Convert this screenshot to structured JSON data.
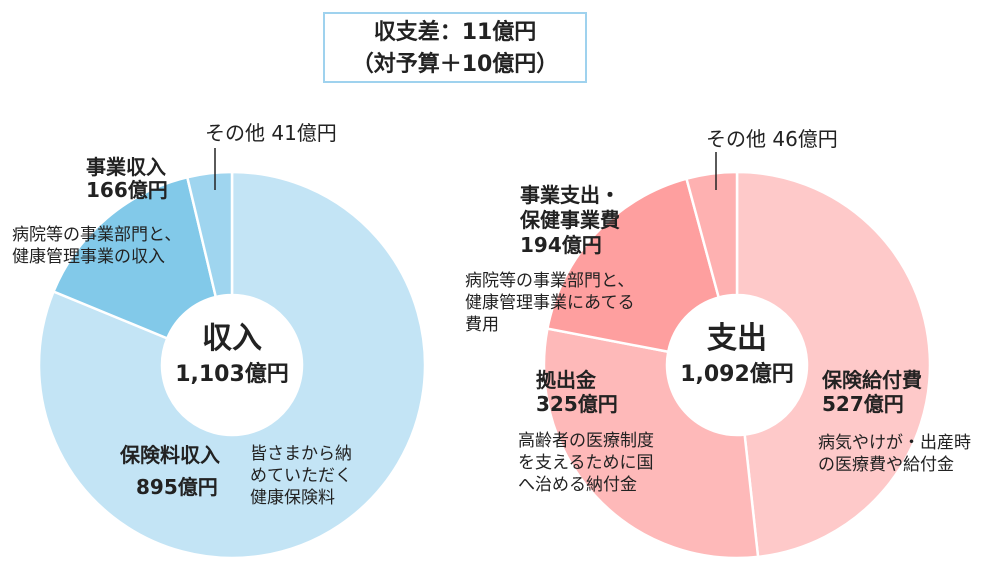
{
  "header": {
    "line1": "収支差：11億円",
    "line2": "（対予算＋10億円）"
  },
  "chart_data": [
    {
      "type": "pie",
      "title": "収入",
      "total_label": "1,103億円",
      "unit": "億円",
      "slices": [
        {
          "name": "保険料収入",
          "value": 895,
          "value_label": "895億円",
          "desc": [
            "皆さまから納",
            "めていただく",
            "健康保険料"
          ],
          "color": "#c3e4f5"
        },
        {
          "name": "事業収入",
          "value": 166,
          "value_label": "166億円",
          "desc": [
            "病院等の事業部門と、",
            "健康管理事業の収入"
          ],
          "color": "#82c9e9"
        },
        {
          "name": "その他",
          "value": 41,
          "value_label": "41億円",
          "desc": [],
          "color": "#9fd5ef"
        }
      ]
    },
    {
      "type": "pie",
      "title": "支出",
      "total_label": "1,092億円",
      "unit": "億円",
      "slices": [
        {
          "name": "保険給付費",
          "value": 527,
          "value_label": "527億円",
          "desc": [
            "病気やけが・出産時",
            "の医療費や給付金"
          ],
          "color": "#fec9c9"
        },
        {
          "name": "拠出金",
          "value": 325,
          "value_label": "325億円",
          "desc": [
            "高齢者の医療制度",
            "を支えるために国",
            "へ治める納付金"
          ],
          "color": "#feb9b9"
        },
        {
          "name": "事業支出・保健事業費",
          "name_lines": [
            "事業支出・",
            "保健事業費"
          ],
          "value": 194,
          "value_label": "194億円",
          "desc": [
            "病院等の事業部門と、",
            "健康管理事業にあてる",
            "費用"
          ],
          "color": "#fe9f9f"
        },
        {
          "name": "その他",
          "value": 46,
          "value_label": "46億円",
          "desc": [],
          "color": "#feb1b1"
        }
      ]
    }
  ]
}
